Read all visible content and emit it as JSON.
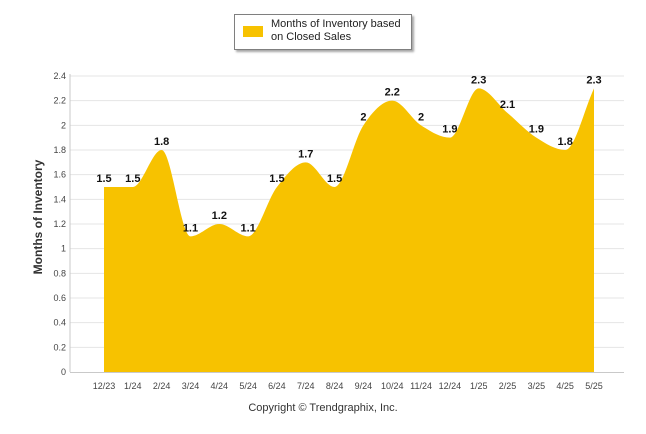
{
  "chart_data": {
    "type": "area",
    "categories": [
      "12/23",
      "1/24",
      "2/24",
      "3/24",
      "4/24",
      "5/24",
      "6/24",
      "7/24",
      "8/24",
      "9/24",
      "10/24",
      "11/24",
      "12/24",
      "1/25",
      "2/25",
      "3/25",
      "4/25",
      "5/25"
    ],
    "series": [
      {
        "name": "Months of Inventory based on Closed Sales",
        "values": [
          1.5,
          1.5,
          1.8,
          1.1,
          1.2,
          1.1,
          1.5,
          1.7,
          1.5,
          2,
          2.2,
          2,
          1.9,
          2.3,
          2.1,
          1.9,
          1.8,
          2.3
        ]
      }
    ],
    "data_labels": [
      "1.5",
      "1.5",
      "1.8",
      "1.1",
      "1.2",
      "1.1",
      "1.5",
      "1.7",
      "1.5",
      "2",
      "2.2",
      "2",
      "1.9",
      "2.3",
      "2.1",
      "1.9",
      "1.8",
      "2.3"
    ],
    "ylabel": "Months of Inventory",
    "xlabel": "",
    "ylim": [
      0,
      2.4
    ],
    "yticks": [
      "0",
      "0.2",
      "0.4",
      "0.6",
      "0.8",
      "1",
      "1.2",
      "1.4",
      "1.6",
      "1.8",
      "2",
      "2.2",
      "2.4"
    ],
    "grid": true,
    "legend_position": "top-center",
    "color": "#f7c200"
  },
  "footer": {
    "copyright": "Copyright © Trendgraphix, Inc."
  }
}
